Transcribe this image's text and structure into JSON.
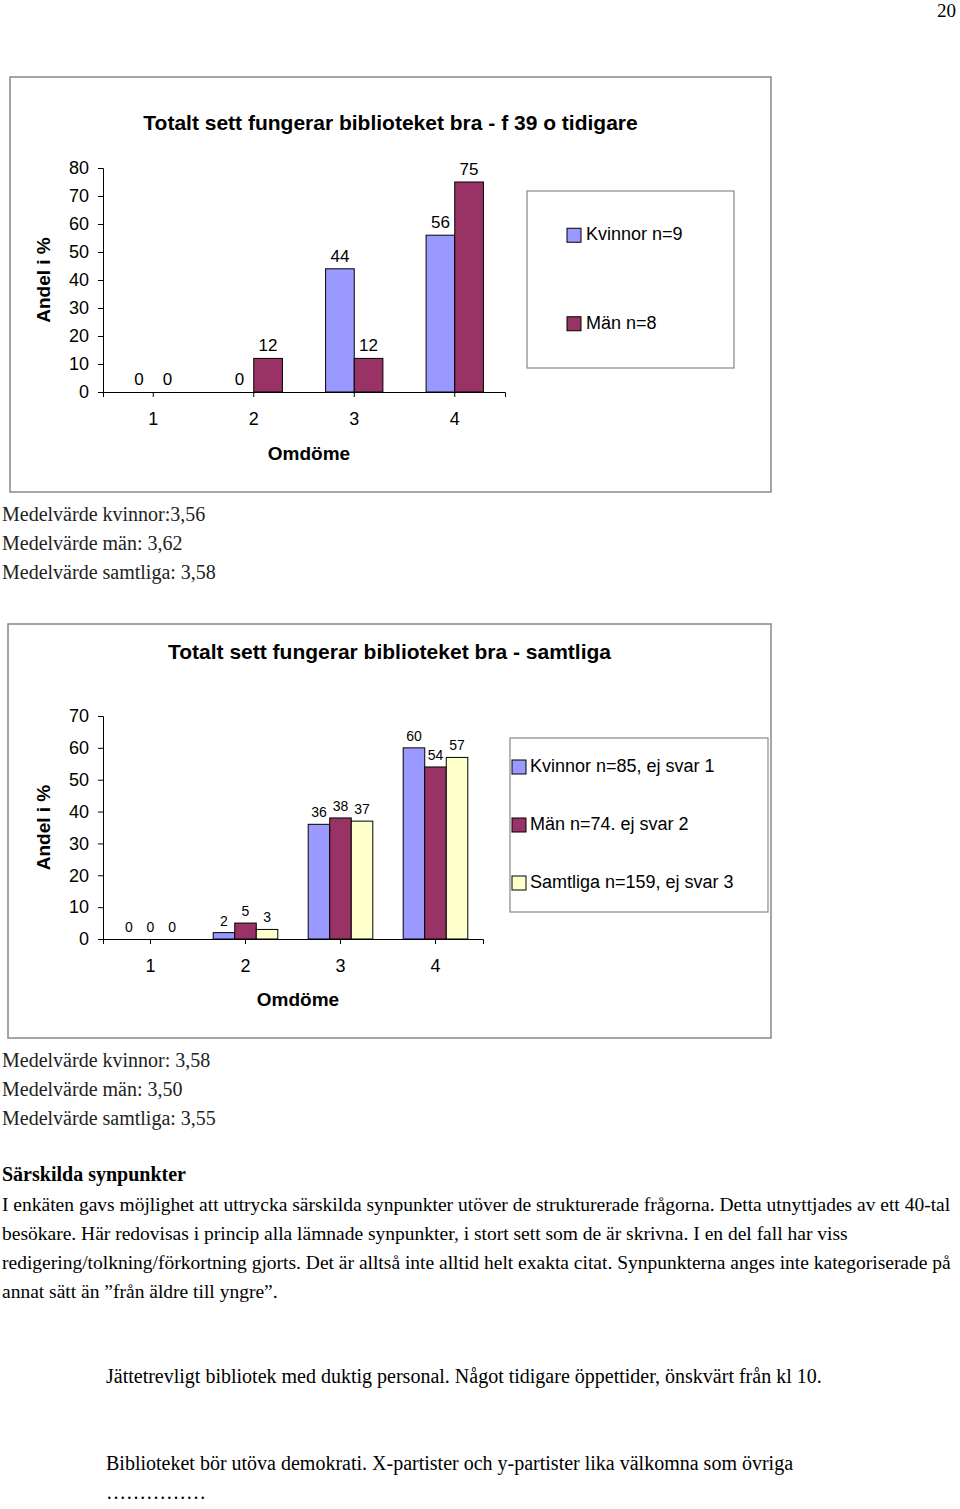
{
  "chart_data": [
    {
      "type": "bar",
      "title": "Totalt sett fungerar biblioteket bra - f 39 o tidigare",
      "x_label": "Omdöme",
      "y_label": "Andel i %",
      "categories": [
        "1",
        "2",
        "3",
        "4"
      ],
      "series": [
        {
          "name": "Kvinnor n=9",
          "color": "#9999ff",
          "values": [
            0,
            0,
            44,
            56
          ]
        },
        {
          "name": "Män n=8",
          "color": "#993366",
          "values": [
            0,
            12,
            12,
            75
          ]
        }
      ],
      "ylim": [
        0,
        80
      ],
      "yticks": [
        0,
        10,
        20,
        30,
        40,
        50,
        60,
        70,
        80
      ],
      "grid": false,
      "legend": "right",
      "data_labels": true,
      "annotations": [
        "Medelvärde kvinnor:3,56",
        "Medelvärde män: 3,62",
        "Medelvärde samtliga: 3,58"
      ]
    },
    {
      "type": "bar",
      "title": "Totalt sett fungerar biblioteket bra - samtliga",
      "x_label": "Omdöme",
      "y_label": "Andel i %",
      "categories": [
        "1",
        "2",
        "3",
        "4"
      ],
      "series": [
        {
          "name": "Kvinnor n=85, ej svar 1",
          "color": "#9999ff",
          "values": [
            0,
            2,
            36,
            60
          ]
        },
        {
          "name": "Män n=74. ej svar 2",
          "color": "#993366",
          "values": [
            0,
            5,
            38,
            54
          ]
        },
        {
          "name": "Samtliga n=159, ej svar 3",
          "color": "#ffffcc",
          "values": [
            0,
            3,
            37,
            57
          ]
        }
      ],
      "ylim": [
        0,
        70
      ],
      "yticks": [
        0,
        10,
        20,
        30,
        40,
        50,
        60,
        70
      ],
      "grid": false,
      "legend": "right",
      "data_labels": true,
      "annotations": [
        "Medelvärde kvinnor: 3,58",
        "Medelvärde män: 3,50",
        "Medelvärde samtliga: 3,55"
      ]
    }
  ],
  "page": {
    "number": "20",
    "heading": "Särskilda synpunkter",
    "intro": "I enkäten gavs möjlighet att uttrycka särskilda synpunkter utöver de strukturerade frågorna. Detta utnyttjades av ett 40-tal besökare. Här redovisas i princip alla lämnade synpunkter, i stort sett som de är skrivna. I en del fall har viss redigering/tolkning/förkortning gjorts. Det är alltså inte alltid helt exakta citat. Synpunkterna anges inte kategoriserade på annat sätt än ”från äldre till yngre”.",
    "comments": [
      "Jättetrevligt bibliotek med duktig personal. Något tidigare öppettider, önskvärt från kl 10.",
      "Biblioteket bör utöva demokrati. X-partister och y-partister lika välkomna som övriga ……………"
    ]
  }
}
